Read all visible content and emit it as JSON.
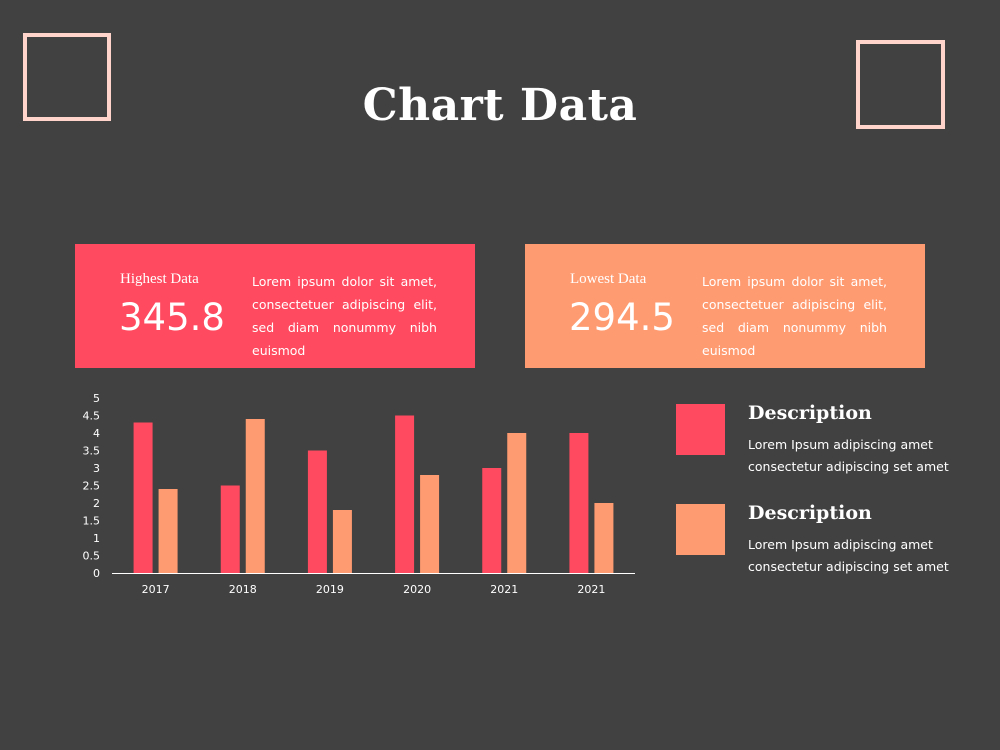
{
  "title": "Chart Data",
  "colors": {
    "background": "#414141",
    "accent_red": "#ff4a5f",
    "accent_orange": "#ff9b71",
    "frame": "#ffd5cb"
  },
  "cards": [
    {
      "label": "Highest Data",
      "value": "345.8",
      "text": "Lorem ipsum dolor sit amet, consectetuer adipiscing elit, sed diam nonummy nibh euismod",
      "color": "#ff4a5f"
    },
    {
      "label": "Lowest Data",
      "value": "294.5",
      "text": "Lorem ipsum dolor sit amet, consectetuer adipiscing elit, sed diam nonummy nibh euismod",
      "color": "#ff9b71"
    }
  ],
  "legend": [
    {
      "title": "Description",
      "text": "Lorem Ipsum adipiscing amet consectetur adipiscing set amet",
      "color": "#ff4a5f"
    },
    {
      "title": "Description",
      "text": "Lorem Ipsum adipiscing amet consectetur adipiscing set amet",
      "color": "#ff9b71"
    }
  ],
  "chart_data": {
    "type": "bar",
    "categories": [
      "2017",
      "2018",
      "2019",
      "2020",
      "2021",
      "2021"
    ],
    "series": [
      {
        "values": [
          4.3,
          2.5,
          3.5,
          4.5,
          3.0,
          4.0
        ],
        "color": "#ff4a5f"
      },
      {
        "values": [
          2.4,
          4.4,
          1.8,
          2.8,
          4.0,
          2.0
        ],
        "color": "#ff9b71"
      }
    ],
    "yticks": [
      "0",
      "0.5",
      "1",
      "1.5",
      "2",
      "2.5",
      "3",
      "3.5",
      "4",
      "4.5",
      "5"
    ],
    "ylim": [
      0,
      5
    ],
    "grid": false,
    "title": "",
    "xlabel": "",
    "ylabel": ""
  }
}
